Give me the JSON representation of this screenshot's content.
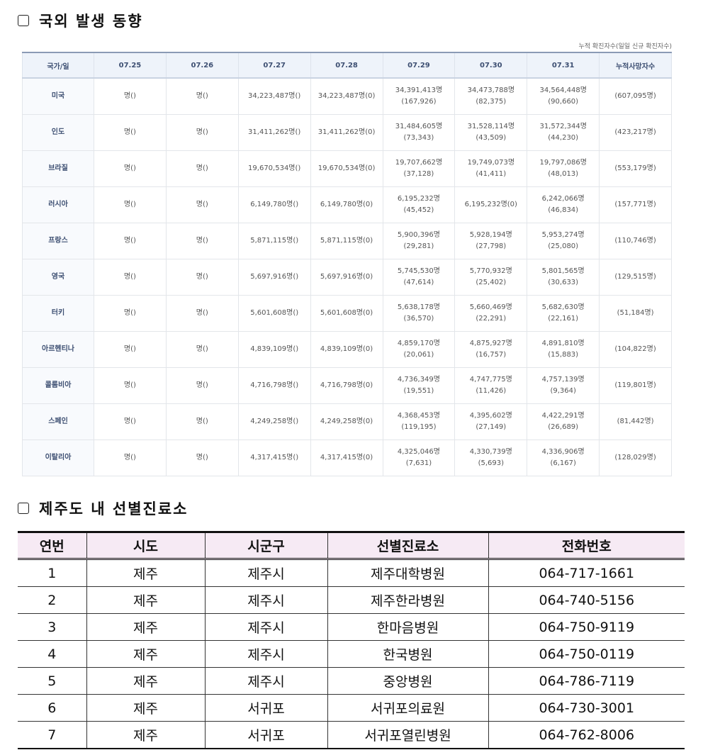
{
  "section1": {
    "title": "국외 발생 동향",
    "note": "누적 확진자수(일일 신규 확진자수)",
    "headers": [
      "국가/일",
      "07.25",
      "07.26",
      "07.27",
      "07.28",
      "07.29",
      "07.30",
      "07.31",
      "누적사망자수"
    ],
    "rows": [
      [
        "미국",
        "명()",
        "명()",
        "34,223,487명()",
        "34,223,487명(0)",
        "34,391,413명\n(167,926)",
        "34,473,788명\n(82,375)",
        "34,564,448명\n(90,660)",
        "(607,095명)"
      ],
      [
        "인도",
        "명()",
        "명()",
        "31,411,262명()",
        "31,411,262명(0)",
        "31,484,605명\n(73,343)",
        "31,528,114명\n(43,509)",
        "31,572,344명\n(44,230)",
        "(423,217명)"
      ],
      [
        "브라질",
        "명()",
        "명()",
        "19,670,534명()",
        "19,670,534명(0)",
        "19,707,662명\n(37,128)",
        "19,749,073명\n(41,411)",
        "19,797,086명\n(48,013)",
        "(553,179명)"
      ],
      [
        "러시아",
        "명()",
        "명()",
        "6,149,780명()",
        "6,149,780명(0)",
        "6,195,232명\n(45,452)",
        "6,195,232명(0)",
        "6,242,066명\n(46,834)",
        "(157,771명)"
      ],
      [
        "프랑스",
        "명()",
        "명()",
        "5,871,115명()",
        "5,871,115명(0)",
        "5,900,396명\n(29,281)",
        "5,928,194명\n(27,798)",
        "5,953,274명\n(25,080)",
        "(110,746명)"
      ],
      [
        "영국",
        "명()",
        "명()",
        "5,697,916명()",
        "5,697,916명(0)",
        "5,745,530명\n(47,614)",
        "5,770,932명\n(25,402)",
        "5,801,565명\n(30,633)",
        "(129,515명)"
      ],
      [
        "터키",
        "명()",
        "명()",
        "5,601,608명()",
        "5,601,608명(0)",
        "5,638,178명\n(36,570)",
        "5,660,469명\n(22,291)",
        "5,682,630명\n(22,161)",
        "(51,184명)"
      ],
      [
        "아르헨티나",
        "명()",
        "명()",
        "4,839,109명()",
        "4,839,109명(0)",
        "4,859,170명\n(20,061)",
        "4,875,927명\n(16,757)",
        "4,891,810명\n(15,883)",
        "(104,822명)"
      ],
      [
        "콜롬비아",
        "명()",
        "명()",
        "4,716,798명()",
        "4,716,798명(0)",
        "4,736,349명\n(19,551)",
        "4,747,775명\n(11,426)",
        "4,757,139명\n(9,364)",
        "(119,801명)"
      ],
      [
        "스페인",
        "명()",
        "명()",
        "4,249,258명()",
        "4,249,258명(0)",
        "4,368,453명\n(119,195)",
        "4,395,602명\n(27,149)",
        "4,422,291명\n(26,689)",
        "(81,442명)"
      ],
      [
        "이탈리아",
        "명()",
        "명()",
        "4,317,415명()",
        "4,317,415명(0)",
        "4,325,046명\n(7,631)",
        "4,330,739명\n(5,693)",
        "4,336,906명\n(6,167)",
        "(128,029명)"
      ]
    ]
  },
  "section2": {
    "title": "제주도 내 선별진료소",
    "headers": [
      "연번",
      "시도",
      "시군구",
      "선별진료소",
      "전화번호"
    ],
    "rows": [
      [
        "1",
        "제주",
        "제주시",
        "제주대학병원",
        "064-717-1661"
      ],
      [
        "2",
        "제주",
        "제주시",
        "제주한라병원",
        "064-740-5156"
      ],
      [
        "3",
        "제주",
        "제주시",
        "한마음병원",
        "064-750-9119"
      ],
      [
        "4",
        "제주",
        "제주시",
        "한국병원",
        "064-750-0119"
      ],
      [
        "5",
        "제주",
        "제주시",
        "중앙병원",
        "064-786-7119"
      ],
      [
        "6",
        "제주",
        "서귀포",
        "서귀포의료원",
        "064-730-3001"
      ],
      [
        "7",
        "제주",
        "서귀포",
        "서귀포열린병원",
        "064-762-8006"
      ]
    ]
  }
}
